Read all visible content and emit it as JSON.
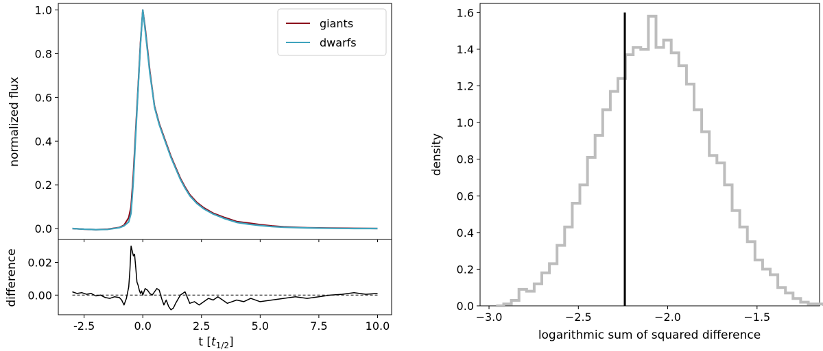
{
  "chart_data": [
    {
      "type": "line",
      "title": "",
      "xlabel": "t",
      "xlabel_unit": "t_{1/2}",
      "ylabel": "normalized flux",
      "xlim": [
        -3.6,
        10.6
      ],
      "ylim": [
        -0.05,
        1.03
      ],
      "xticks": [
        "-2.5",
        "0.0",
        "2.5",
        "5.0",
        "7.5",
        "10.0"
      ],
      "xtick_values": [
        -2.5,
        0,
        2.5,
        5,
        7.5,
        10
      ],
      "yticks": [
        "0.0",
        "0.2",
        "0.4",
        "0.6",
        "0.8",
        "1.0"
      ],
      "ytick_values": [
        0,
        0.2,
        0.4,
        0.6,
        0.8,
        1.0
      ],
      "legend_position": "top-right",
      "series": [
        {
          "name": "giants",
          "color": "#8b0a1a",
          "x": [
            -3,
            -2.5,
            -2,
            -1.5,
            -1,
            -0.8,
            -0.6,
            -0.5,
            -0.4,
            -0.3,
            -0.2,
            -0.1,
            0,
            0.1,
            0.2,
            0.3,
            0.4,
            0.5,
            0.7,
            0.9,
            1.0,
            1.2,
            1.4,
            1.6,
            1.8,
            2.0,
            2.3,
            2.6,
            3.0,
            3.5,
            4.0,
            4.5,
            5.0,
            5.5,
            6.0,
            7.0,
            8.0,
            9.0,
            10.0
          ],
          "y": [
            0.0,
            -0.003,
            -0.005,
            -0.003,
            0.005,
            0.015,
            0.05,
            0.1,
            0.25,
            0.45,
            0.65,
            0.85,
            1.0,
            0.92,
            0.82,
            0.72,
            0.64,
            0.56,
            0.48,
            0.42,
            0.39,
            0.33,
            0.28,
            0.23,
            0.19,
            0.155,
            0.12,
            0.095,
            0.07,
            0.05,
            0.032,
            0.025,
            0.018,
            0.012,
            0.008,
            0.004,
            0.002,
            0.001,
            0.0
          ]
        },
        {
          "name": "dwarfs",
          "color": "#3fa3bd",
          "x": [
            -3,
            -2.5,
            -2,
            -1.5,
            -1,
            -0.8,
            -0.6,
            -0.5,
            -0.4,
            -0.3,
            -0.2,
            -0.1,
            0,
            0.1,
            0.2,
            0.3,
            0.4,
            0.5,
            0.7,
            0.9,
            1.0,
            1.2,
            1.4,
            1.6,
            1.8,
            2.0,
            2.3,
            2.6,
            3.0,
            3.5,
            4.0,
            4.5,
            5.0,
            5.5,
            6.0,
            7.0,
            8.0,
            9.0,
            10.0
          ],
          "y": [
            0.0,
            -0.003,
            -0.005,
            -0.004,
            0.004,
            0.012,
            0.03,
            0.07,
            0.22,
            0.43,
            0.64,
            0.84,
            1.0,
            0.91,
            0.81,
            0.71,
            0.635,
            0.555,
            0.475,
            0.415,
            0.385,
            0.325,
            0.275,
            0.225,
            0.185,
            0.15,
            0.115,
            0.09,
            0.066,
            0.045,
            0.028,
            0.02,
            0.014,
            0.009,
            0.006,
            0.003,
            0.001,
            0.0,
            0.0
          ]
        }
      ]
    },
    {
      "type": "line",
      "title": "",
      "xlabel": "t",
      "xlabel_unit": "t_{1/2}",
      "ylabel": "difference",
      "xlim": [
        -3.6,
        10.6
      ],
      "ylim": [
        -0.012,
        0.034
      ],
      "xticks": [
        "-2.5",
        "0.0",
        "2.5",
        "5.0",
        "7.5",
        "10.0"
      ],
      "xtick_values": [
        -2.5,
        0,
        2.5,
        5,
        7.5,
        10
      ],
      "yticks": [
        "0.00",
        "0.02"
      ],
      "ytick_values": [
        0,
        0.02
      ],
      "reference_line": 0,
      "series": [
        {
          "name": "difference",
          "color": "#000000",
          "x": [
            -3,
            -2.8,
            -2.6,
            -2.4,
            -2.2,
            -2.0,
            -1.8,
            -1.6,
            -1.4,
            -1.2,
            -1.0,
            -0.9,
            -0.8,
            -0.7,
            -0.6,
            -0.55,
            -0.5,
            -0.45,
            -0.4,
            -0.35,
            -0.3,
            -0.25,
            -0.2,
            -0.15,
            -0.1,
            -0.05,
            0.0,
            0.1,
            0.2,
            0.3,
            0.4,
            0.5,
            0.6,
            0.7,
            0.8,
            0.9,
            1.0,
            1.1,
            1.2,
            1.3,
            1.4,
            1.6,
            1.8,
            2.0,
            2.2,
            2.4,
            2.6,
            2.8,
            3.0,
            3.2,
            3.4,
            3.6,
            3.8,
            4.0,
            4.3,
            4.6,
            5.0,
            5.5,
            6.0,
            6.5,
            7.0,
            7.5,
            8.0,
            8.5,
            9.0,
            9.5,
            10.0
          ],
          "y": [
            0.002,
            0.001,
            0.0015,
            0.0005,
            0.001,
            -0.0005,
            0.0,
            -0.0015,
            -0.002,
            -0.001,
            -0.0015,
            -0.003,
            -0.006,
            -0.002,
            0.005,
            0.015,
            0.03,
            0.027,
            0.024,
            0.025,
            0.017,
            0.008,
            0.006,
            0.003,
            0.001,
            0.0025,
            0.0,
            0.004,
            0.003,
            0.001,
            0.0,
            0.002,
            0.004,
            0.003,
            -0.002,
            -0.006,
            -0.003,
            -0.007,
            -0.009,
            -0.008,
            -0.005,
            0.0,
            0.002,
            -0.005,
            -0.004,
            -0.006,
            -0.004,
            -0.002,
            -0.003,
            -0.001,
            -0.003,
            -0.005,
            -0.004,
            -0.003,
            -0.004,
            -0.002,
            -0.004,
            -0.003,
            -0.002,
            -0.001,
            -0.002,
            -0.001,
            0.0,
            0.0005,
            0.0015,
            0.0005,
            0.001
          ]
        }
      ]
    },
    {
      "type": "histogram",
      "title": "",
      "xlabel": "logarithmic sum of squared difference",
      "ylabel": "density",
      "xlim": [
        -3.05,
        -1.15
      ],
      "ylim": [
        0,
        1.65
      ],
      "xticks": [
        "−3.0",
        "−2.5",
        "−2.0",
        "−1.5"
      ],
      "xtick_values": [
        -3.0,
        -2.5,
        -2.0,
        -1.5
      ],
      "yticks": [
        "0.0",
        "0.2",
        "0.4",
        "0.6",
        "0.8",
        "1.0",
        "1.2",
        "1.4",
        "1.6"
      ],
      "ytick_values": [
        0,
        0.2,
        0.4,
        0.6,
        0.8,
        1.0,
        1.2,
        1.4,
        1.6
      ],
      "bin_start": -2.96,
      "bin_width": 0.0426,
      "values": [
        0.0,
        0.01,
        0.03,
        0.09,
        0.08,
        0.12,
        0.18,
        0.23,
        0.33,
        0.43,
        0.56,
        0.66,
        0.81,
        0.93,
        1.07,
        1.17,
        1.24,
        1.37,
        1.41,
        1.4,
        1.58,
        1.41,
        1.45,
        1.38,
        1.31,
        1.21,
        1.07,
        0.95,
        0.82,
        0.78,
        0.66,
        0.52,
        0.43,
        0.35,
        0.25,
        0.2,
        0.17,
        0.1,
        0.07,
        0.04,
        0.02,
        0.01,
        0.01
      ],
      "marker_line_x": -2.24,
      "marker_line_top": 1.6,
      "color": "#bdbdbd",
      "marker_color": "#000000"
    }
  ]
}
